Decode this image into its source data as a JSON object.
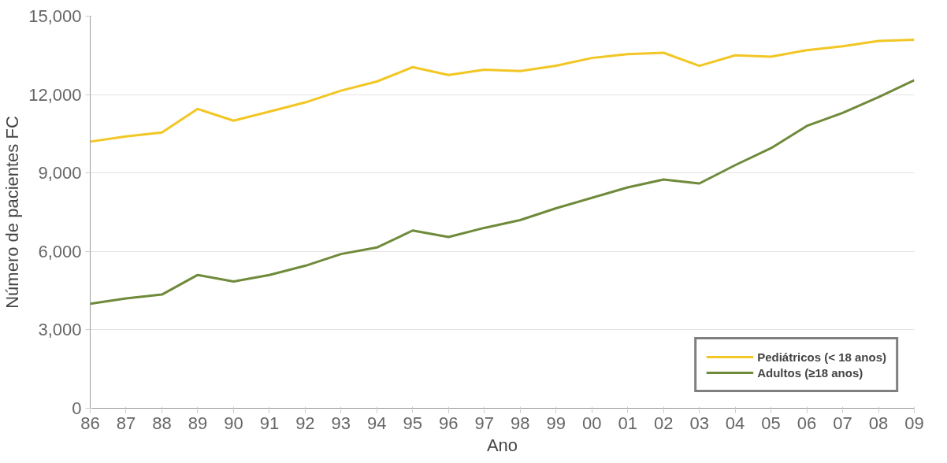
{
  "chart_data": {
    "type": "line",
    "xlabel": "Ano",
    "ylabel": "Número de pacientes FC",
    "categories": [
      "86",
      "87",
      "88",
      "89",
      "90",
      "91",
      "92",
      "93",
      "94",
      "95",
      "96",
      "97",
      "98",
      "99",
      "00",
      "01",
      "02",
      "03",
      "04",
      "05",
      "06",
      "07",
      "08",
      "09"
    ],
    "ylim": [
      0,
      15000
    ],
    "yticks": [
      {
        "value": 0,
        "label": "0"
      },
      {
        "value": 3000,
        "label": "3,000"
      },
      {
        "value": 6000,
        "label": "6,000"
      },
      {
        "value": 9000,
        "label": "9,000"
      },
      {
        "value": 12000,
        "label": "12,000"
      },
      {
        "value": 15000,
        "label": "15,000"
      }
    ],
    "grid": "y",
    "legend": "bottom right",
    "line_style": "solid",
    "marker": "none",
    "series": [
      {
        "name": "Pediátricos (< 18 anos)",
        "color": "#f2c623",
        "values": [
          10200,
          10400,
          10550,
          11450,
          11000,
          11350,
          11700,
          12150,
          12500,
          13050,
          12750,
          12950,
          12900,
          13100,
          13400,
          13550,
          13600,
          13100,
          13500,
          13450,
          13700,
          13850,
          14050,
          14100
        ]
      },
      {
        "name": "Adultos (≥18 anos)",
        "color": "#6f8a3a",
        "values": [
          4000,
          4200,
          4350,
          5100,
          4850,
          5100,
          5450,
          5900,
          6150,
          6800,
          6550,
          6900,
          7200,
          7650,
          8050,
          8450,
          8750,
          8600,
          9300,
          9950,
          10800,
          11300,
          11900,
          12550
        ]
      }
    ]
  }
}
